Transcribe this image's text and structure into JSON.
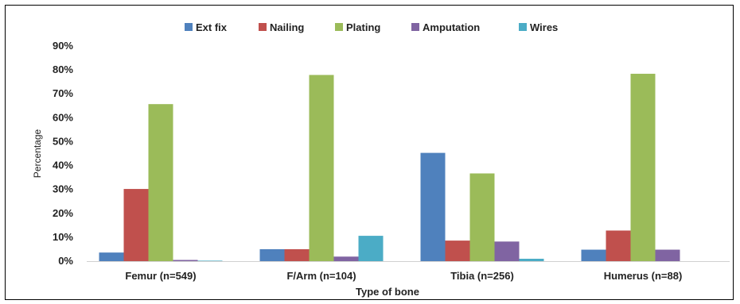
{
  "chart_data": {
    "type": "bar",
    "title": "",
    "xlabel": "Type of bone",
    "ylabel": "Percentage",
    "ylim": [
      0,
      90
    ],
    "yticks": [
      "0%",
      "10%",
      "20%",
      "30%",
      "40%",
      "50%",
      "60%",
      "70%",
      "80%",
      "90%"
    ],
    "grid": false,
    "legend_position": "top",
    "categories": [
      "Femur (n=549)",
      "F/Arm (n=104)",
      "Tibia (n=256)",
      "Humerus (n=88)"
    ],
    "series": [
      {
        "name": "Ext fix",
        "color": "#4f81bd",
        "values": [
          3.6,
          5.0,
          45.3,
          4.8
        ]
      },
      {
        "name": "Nailing",
        "color": "#c0504d",
        "values": [
          30.2,
          5.0,
          8.6,
          12.8
        ]
      },
      {
        "name": "Plating",
        "color": "#9bbb59",
        "values": [
          65.7,
          77.9,
          36.7,
          78.4
        ]
      },
      {
        "name": "Amputation",
        "color": "#8064a2",
        "values": [
          0.5,
          1.9,
          8.2,
          4.8
        ]
      },
      {
        "name": "Wires",
        "color": "#4bacc6",
        "values": [
          0.2,
          10.6,
          1.0,
          0
        ]
      }
    ]
  }
}
